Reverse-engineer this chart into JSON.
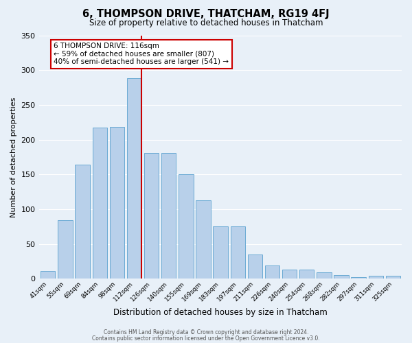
{
  "title": "6, THOMPSON DRIVE, THATCHAM, RG19 4FJ",
  "subtitle": "Size of property relative to detached houses in Thatcham",
  "xlabel": "Distribution of detached houses by size in Thatcham",
  "ylabel": "Number of detached properties",
  "bar_labels": [
    "41sqm",
    "55sqm",
    "69sqm",
    "84sqm",
    "98sqm",
    "112sqm",
    "126sqm",
    "140sqm",
    "155sqm",
    "169sqm",
    "183sqm",
    "197sqm",
    "211sqm",
    "226sqm",
    "240sqm",
    "254sqm",
    "268sqm",
    "282sqm",
    "297sqm",
    "311sqm",
    "325sqm"
  ],
  "bar_values": [
    11,
    84,
    164,
    217,
    218,
    288,
    181,
    181,
    150,
    113,
    75,
    75,
    35,
    19,
    13,
    13,
    9,
    5,
    2,
    4,
    4
  ],
  "bar_color": "#b8d0ea",
  "bar_edge_color": "#6aaad4",
  "background_color": "#e8f0f8",
  "grid_color": "#ffffff",
  "vline_color": "#cc0000",
  "annotation_title": "6 THOMPSON DRIVE: 116sqm",
  "annotation_line1": "← 59% of detached houses are smaller (807)",
  "annotation_line2": "40% of semi-detached houses are larger (541) →",
  "annotation_box_color": "#ffffff",
  "annotation_box_edge": "#cc0000",
  "ylim": [
    0,
    350
  ],
  "yticks": [
    0,
    50,
    100,
    150,
    200,
    250,
    300,
    350
  ],
  "footer1": "Contains HM Land Registry data © Crown copyright and database right 2024.",
  "footer2": "Contains public sector information licensed under the Open Government Licence v3.0."
}
